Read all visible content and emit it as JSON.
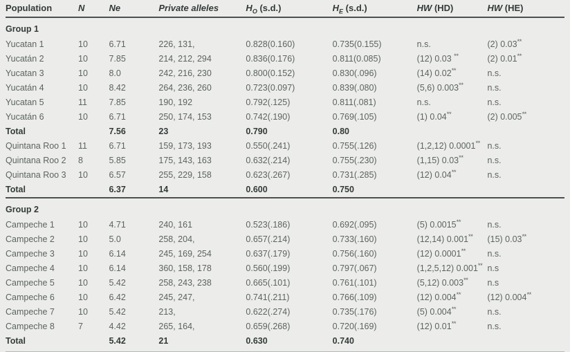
{
  "colors": {
    "background": "#ecedea",
    "text_body": "#5c6360",
    "text_bold": "#333a38",
    "rule": "#4a4f50",
    "bottom_rule": "#b3b8b6"
  },
  "table": {
    "columns": [
      {
        "id": "population",
        "parts": [
          {
            "t": "Population"
          }
        ]
      },
      {
        "id": "n",
        "parts": [
          {
            "t": "N",
            "i": true
          }
        ]
      },
      {
        "id": "ne",
        "parts": [
          {
            "t": "Ne",
            "i": true
          }
        ]
      },
      {
        "id": "private-alleles",
        "parts": [
          {
            "t": "Private alleles",
            "i": true
          }
        ]
      },
      {
        "id": "ho-sd",
        "parts": [
          {
            "t": "H",
            "i": true
          },
          {
            "t": "O",
            "i": true,
            "sub": true
          },
          {
            "t": " (s.d.)"
          }
        ]
      },
      {
        "id": "he-sd",
        "parts": [
          {
            "t": "H",
            "i": true
          },
          {
            "t": "E",
            "i": true,
            "sub": true
          },
          {
            "t": " (s.d.)"
          }
        ]
      },
      {
        "id": "hw-hd",
        "parts": [
          {
            "t": "HW",
            "i": true
          },
          {
            "t": " (HD)"
          }
        ]
      },
      {
        "id": "hw-he",
        "parts": [
          {
            "t": "HW",
            "i": true
          },
          {
            "t": " (HE)"
          }
        ]
      }
    ],
    "sections": [
      {
        "id": "group-1",
        "title": "Group 1",
        "rule_above": false,
        "rows": [
          {
            "cells": [
              "Yucatan 1",
              "10",
              "6.71",
              "226, 131,",
              "0.828(0.160)",
              "0.735(0.155)",
              "n.s.",
              "(2) 0.03**"
            ]
          },
          {
            "cells": [
              "Yucatán 2",
              "10",
              "7.85",
              "214, 212, 294",
              "0.836(0.176)",
              "0.811(0.085)",
              "(12) 0.03 **",
              "(2) 0.01**"
            ]
          },
          {
            "cells": [
              "Yucatan 3",
              "10",
              "8.0",
              "242, 216, 230",
              "0.800(0.152)",
              "0.830(.096)",
              "(14) 0.02**",
              "n.s."
            ]
          },
          {
            "cells": [
              "Yucatán 4",
              "10",
              "8.42",
              "264, 236, 260",
              "0.723(0.097)",
              "0.839(.080)",
              "(5,6) 0.003**",
              "n.s."
            ]
          },
          {
            "cells": [
              "Yucatan 5",
              "11",
              "7.85",
              "190, 192",
              "0.792(.125)",
              "0.811(.081)",
              "n.s.",
              "n.s."
            ]
          },
          {
            "cells": [
              "Yucatán 6",
              "10",
              "6.71",
              "250, 174, 153",
              "0.742(.190)",
              "0.769(.105)",
              "(1) 0.04**",
              "(2) 0.005**"
            ]
          },
          {
            "total": true,
            "cells": [
              "Total",
              "",
              "7.56",
              "23",
              "0.790",
              "0.80",
              "",
              ""
            ]
          },
          {
            "cells": [
              "Quintana Roo 1",
              "11",
              "6.71",
              "159, 173, 193",
              "0.550(.241)",
              "0.755(.126)",
              "(1,2,12) 0.0001**",
              "n.s."
            ]
          },
          {
            "cells": [
              "Quintana Roo 2",
              "8",
              "5.85",
              "175, 143, 163",
              "0.632(.214)",
              "0.755(.230)",
              "(1,15) 0.03**",
              "n.s."
            ]
          },
          {
            "cells": [
              "Quintana Roo 3",
              "10",
              "6.57",
              "255, 229, 158",
              "0.623(.267)",
              "0.731(.285)",
              "(12) 0.04**",
              "n.s."
            ]
          },
          {
            "total": true,
            "cells": [
              "Total",
              "",
              "6.37",
              "14",
              "0.600",
              "0.750",
              "",
              ""
            ]
          }
        ]
      },
      {
        "id": "group-2",
        "title": "Group 2",
        "rule_above": true,
        "rows": [
          {
            "cells": [
              "Campeche 1",
              "10",
              "4.71",
              "240, 161",
              "0.523(.186)",
              "0.692(.095)",
              "(5) 0.0015**",
              "n.s."
            ]
          },
          {
            "cells": [
              "Campeche 2",
              "10",
              "5.0",
              "258, 204,",
              "0.657(.214)",
              "0.733(.160)",
              "(12,14) 0.001**",
              "(15) 0.03**"
            ]
          },
          {
            "cells": [
              "Campeche 3",
              "10",
              "6.14",
              "245, 169, 254",
              "0.637(.179)",
              "0.756(.160)",
              "(12) 0.0001**",
              "n.s."
            ]
          },
          {
            "cells": [
              "Campeche 4",
              "10",
              "6.14",
              "360, 158, 178",
              "0.560(.199)",
              "0.797(.067)",
              "(1,2,5,12) 0.001**",
              "n.s"
            ]
          },
          {
            "cells": [
              "Campeche 5",
              "10",
              "5.42",
              "258, 243, 238",
              "0.665(.101)",
              "0.761(.101)",
              "(5,12) 0.003**",
              "n.s"
            ]
          },
          {
            "cells": [
              "Campeche 6",
              "10",
              "6.42",
              "245, 247,",
              "0.741(.211)",
              "0.766(.109)",
              "(12) 0.004**",
              "(12) 0.004**"
            ]
          },
          {
            "cells": [
              "Campeche 7",
              "10",
              "5.42",
              "213,",
              "0.622(.274)",
              "0.735(.176)",
              "(5) 0.004**",
              "n.s."
            ]
          },
          {
            "cells": [
              "Campeche 8",
              "7",
              "4.42",
              "265, 164,",
              "0.659(.268)",
              "0.720(.169)",
              "(12) 0.01**",
              "n.s."
            ]
          },
          {
            "total": true,
            "cells": [
              "Total",
              "",
              "5.42",
              "21",
              "0.630",
              "0.740",
              "",
              ""
            ]
          }
        ]
      }
    ]
  }
}
